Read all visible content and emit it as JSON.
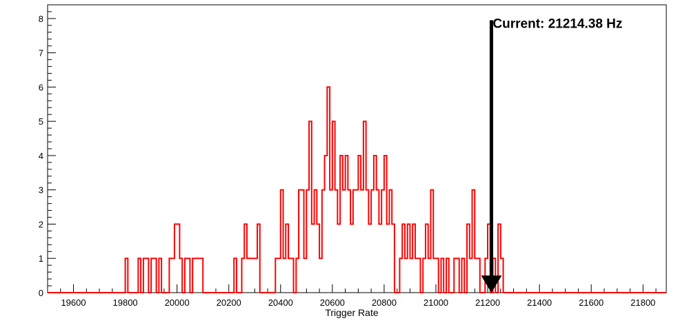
{
  "chart_data": {
    "type": "histogram",
    "xlabel": "Trigger Rate",
    "ylabel": "",
    "xlim": [
      19500,
      21890
    ],
    "ylim": [
      0,
      8.4
    ],
    "x_ticks": [
      19600,
      19800,
      20000,
      20200,
      20400,
      20600,
      20800,
      21000,
      21200,
      21400,
      21600,
      21800
    ],
    "y_ticks": [
      0,
      1,
      2,
      3,
      4,
      5,
      6,
      7,
      8
    ],
    "bin_width": 10,
    "grid": false,
    "series": [
      {
        "color": "#ff0000",
        "bins": [
          [
            19800,
            1
          ],
          [
            19850,
            1
          ],
          [
            19870,
            1
          ],
          [
            19880,
            1
          ],
          [
            19900,
            1
          ],
          [
            19910,
            1
          ],
          [
            19930,
            1
          ],
          [
            19970,
            1
          ],
          [
            19980,
            1
          ],
          [
            19990,
            2
          ],
          [
            20000,
            2
          ],
          [
            20010,
            1
          ],
          [
            20030,
            1
          ],
          [
            20040,
            1
          ],
          [
            20060,
            1
          ],
          [
            20070,
            1
          ],
          [
            20080,
            1
          ],
          [
            20090,
            1
          ],
          [
            20220,
            1
          ],
          [
            20250,
            1
          ],
          [
            20260,
            2
          ],
          [
            20270,
            1
          ],
          [
            20280,
            1
          ],
          [
            20290,
            1
          ],
          [
            20300,
            1
          ],
          [
            20310,
            2
          ],
          [
            20380,
            1
          ],
          [
            20390,
            1
          ],
          [
            20400,
            3
          ],
          [
            20410,
            1
          ],
          [
            20420,
            2
          ],
          [
            20430,
            1
          ],
          [
            20440,
            1
          ],
          [
            20460,
            1
          ],
          [
            20470,
            3
          ],
          [
            20480,
            3
          ],
          [
            20490,
            1
          ],
          [
            20500,
            3
          ],
          [
            20510,
            5
          ],
          [
            20520,
            2
          ],
          [
            20530,
            3
          ],
          [
            20540,
            2
          ],
          [
            20550,
            1
          ],
          [
            20560,
            3
          ],
          [
            20570,
            4
          ],
          [
            20580,
            6
          ],
          [
            20590,
            3
          ],
          [
            20600,
            5
          ],
          [
            20610,
            3
          ],
          [
            20620,
            2
          ],
          [
            20630,
            4
          ],
          [
            20640,
            3
          ],
          [
            20650,
            4
          ],
          [
            20660,
            3
          ],
          [
            20670,
            2
          ],
          [
            20680,
            3
          ],
          [
            20690,
            3
          ],
          [
            20700,
            4
          ],
          [
            20710,
            3
          ],
          [
            20720,
            5
          ],
          [
            20730,
            3
          ],
          [
            20740,
            2
          ],
          [
            20750,
            3
          ],
          [
            20760,
            4
          ],
          [
            20770,
            3
          ],
          [
            20780,
            2
          ],
          [
            20790,
            3
          ],
          [
            20800,
            4
          ],
          [
            20810,
            2
          ],
          [
            20820,
            3
          ],
          [
            20830,
            2
          ],
          [
            20860,
            1
          ],
          [
            20870,
            2
          ],
          [
            20880,
            1
          ],
          [
            20890,
            2
          ],
          [
            20900,
            1
          ],
          [
            20910,
            2
          ],
          [
            20920,
            1
          ],
          [
            20930,
            1
          ],
          [
            20950,
            1
          ],
          [
            20960,
            2
          ],
          [
            20970,
            1
          ],
          [
            20980,
            3
          ],
          [
            20990,
            1
          ],
          [
            21000,
            1
          ],
          [
            21020,
            1
          ],
          [
            21040,
            1
          ],
          [
            21070,
            1
          ],
          [
            21080,
            1
          ],
          [
            21100,
            1
          ],
          [
            21120,
            2
          ],
          [
            21130,
            1
          ],
          [
            21140,
            3
          ],
          [
            21150,
            1
          ],
          [
            21160,
            1
          ],
          [
            21190,
            1
          ],
          [
            21200,
            2
          ],
          [
            21220,
            1
          ],
          [
            21240,
            2
          ],
          [
            21250,
            1
          ]
        ]
      }
    ],
    "marker": {
      "x": 21214.38,
      "y_top": 7.95,
      "label": "Current: 21214.38 Hz"
    }
  }
}
